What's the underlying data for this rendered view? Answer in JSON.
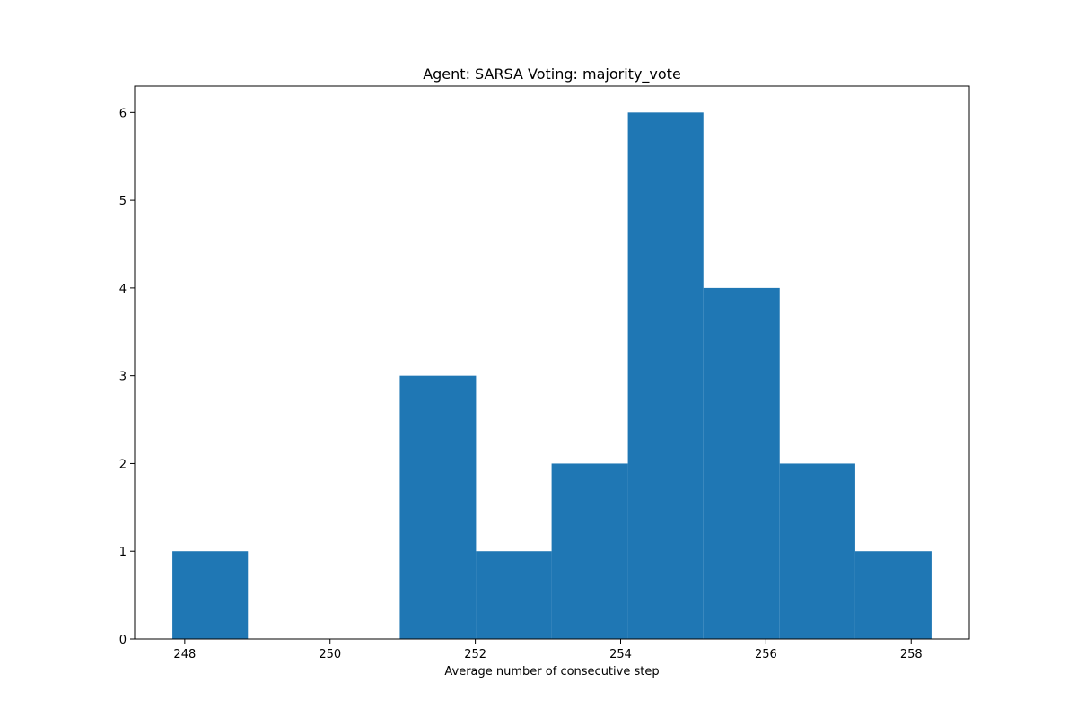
{
  "chart_data": {
    "type": "bar",
    "title": "Agent: SARSA Voting: majority_vote",
    "xlabel": "Average number of consecutive step",
    "ylabel": "",
    "bins": [
      {
        "start": 247.83,
        "end": 248.87,
        "count": 1
      },
      {
        "start": 248.87,
        "end": 249.92,
        "count": 0
      },
      {
        "start": 249.92,
        "end": 250.96,
        "count": 0
      },
      {
        "start": 250.96,
        "end": 252.01,
        "count": 3
      },
      {
        "start": 252.01,
        "end": 253.05,
        "count": 1
      },
      {
        "start": 253.05,
        "end": 254.1,
        "count": 2
      },
      {
        "start": 254.1,
        "end": 255.14,
        "count": 6
      },
      {
        "start": 255.14,
        "end": 256.19,
        "count": 4
      },
      {
        "start": 256.19,
        "end": 257.23,
        "count": 2
      },
      {
        "start": 257.23,
        "end": 258.28,
        "count": 1
      }
    ],
    "xlim": [
      247.31,
      258.8
    ],
    "ylim": [
      0,
      6.3
    ],
    "xticks": [
      248,
      250,
      252,
      254,
      256,
      258
    ],
    "yticks": [
      0,
      1,
      2,
      3,
      4,
      5,
      6
    ],
    "bar_color": "#1f77b4",
    "grid": false,
    "legend": "none"
  }
}
